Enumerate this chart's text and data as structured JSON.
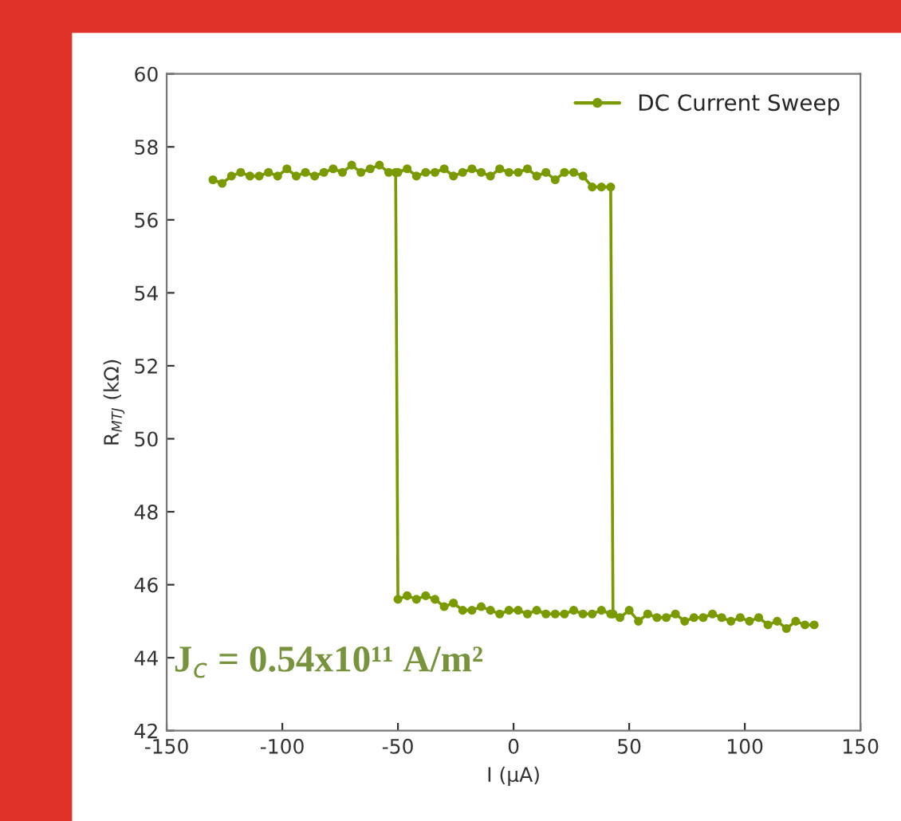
{
  "chart_data": {
    "type": "line",
    "xlabel": "I (μA)",
    "ylabel": "R$_{MTJ}$ (kΩ)",
    "xlim": [
      -150,
      150
    ],
    "ylim": [
      42,
      60
    ],
    "xticks": [
      -150,
      -100,
      -50,
      0,
      50,
      100,
      150
    ],
    "yticks": [
      42,
      44,
      46,
      48,
      50,
      52,
      54,
      56,
      58,
      60
    ],
    "grid": false,
    "legend": "top right",
    "marker": "circle",
    "line_style": "solid",
    "annotations": [
      "J$_{c}$ = 0.54x10¹¹ A/m²"
    ],
    "series": [
      {
        "name": "DC Current Sweep",
        "color": "#7a9a01",
        "x": [
          -130,
          -126,
          -122,
          -118,
          -114,
          -110,
          -106,
          -102,
          -98,
          -94,
          -90,
          -86,
          -82,
          -78,
          -74,
          -70,
          -66,
          -62,
          -58,
          -54,
          -50,
          -46,
          -42,
          -38,
          -34,
          -30,
          -26,
          -22,
          -18,
          -14,
          -10,
          -6,
          -2,
          2,
          6,
          10,
          14,
          18,
          22,
          26,
          30,
          34,
          38,
          42,
          43,
          46,
          50,
          54,
          58,
          62,
          66,
          70,
          74,
          78,
          82,
          86,
          90,
          94,
          98,
          102,
          106,
          110,
          114,
          118,
          122,
          126,
          130
        ],
        "values": [
          57.1,
          57.0,
          57.2,
          57.3,
          57.2,
          57.2,
          57.3,
          57.2,
          57.4,
          57.2,
          57.3,
          57.2,
          57.3,
          57.4,
          57.3,
          57.5,
          57.3,
          57.4,
          57.5,
          57.3,
          57.3,
          57.4,
          57.2,
          57.3,
          57.3,
          57.4,
          57.2,
          57.3,
          57.4,
          57.3,
          57.2,
          57.4,
          57.3,
          57.3,
          57.4,
          57.2,
          57.3,
          57.1,
          57.3,
          57.3,
          57.2,
          56.9,
          56.9,
          56.9,
          45.2,
          45.1,
          45.3,
          45.0,
          45.2,
          45.1,
          45.1,
          45.2,
          45.0,
          45.1,
          45.1,
          45.2,
          45.1,
          45.0,
          45.1,
          45.0,
          45.1,
          44.9,
          45.0,
          44.8,
          45.0,
          44.9,
          44.9
        ]
      },
      {
        "color": "#7a9a01",
        "x": [
          -51,
          -50,
          -46,
          -42,
          -38,
          -34,
          -30,
          -26,
          -22,
          -18,
          -14,
          -10,
          -6,
          -2,
          2,
          6,
          10,
          14,
          18,
          22,
          26,
          30,
          34,
          38,
          42
        ],
        "values": [
          57.3,
          45.6,
          45.7,
          45.6,
          45.7,
          45.6,
          45.4,
          45.5,
          45.3,
          45.3,
          45.4,
          45.3,
          45.2,
          45.3,
          45.3,
          45.2,
          45.3,
          45.2,
          45.2,
          45.2,
          45.3,
          45.2,
          45.2,
          45.3,
          45.2
        ]
      }
    ]
  }
}
